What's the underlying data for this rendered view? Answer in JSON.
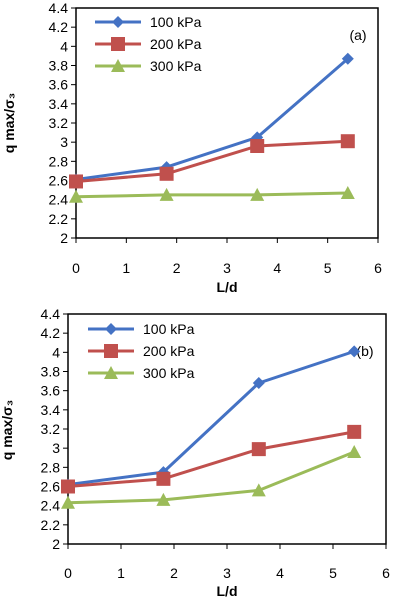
{
  "chart_data": [
    {
      "type": "line",
      "panel_label": "(a)",
      "xlabel": "L/d",
      "ylabel": "q max/σ₃",
      "xlim": [
        0,
        6
      ],
      "ylim": [
        2,
        4.4
      ],
      "xticks": [
        "0",
        "1",
        "2",
        "3",
        "4",
        "5",
        "6"
      ],
      "yticks": [
        "2",
        "2.2",
        "2.4",
        "2.6",
        "2.8",
        "3",
        "3.2",
        "3.4",
        "3.6",
        "3.8",
        "4",
        "4.2",
        "4.4"
      ],
      "grid": false,
      "legend_position": "top-left",
      "series": [
        {
          "name": "100 kPa",
          "color": "#4472C4",
          "marker": "diamond",
          "x": [
            0,
            1.8,
            3.6,
            5.4
          ],
          "y": [
            2.61,
            2.74,
            3.05,
            3.87
          ]
        },
        {
          "name": "200 kPa",
          "color": "#C0504D",
          "marker": "square",
          "x": [
            0,
            1.8,
            3.6,
            5.4
          ],
          "y": [
            2.59,
            2.67,
            2.96,
            3.01
          ]
        },
        {
          "name": "300 kPa",
          "color": "#9BBB59",
          "marker": "triangle",
          "x": [
            0,
            1.8,
            3.6,
            5.4
          ],
          "y": [
            2.43,
            2.45,
            2.45,
            2.47
          ]
        }
      ]
    },
    {
      "type": "line",
      "panel_label": "(b)",
      "xlabel": "L/d",
      "ylabel": "q max/σ₃",
      "xlim": [
        0,
        6
      ],
      "ylim": [
        2,
        4.4
      ],
      "xticks": [
        "0",
        "1",
        "2",
        "3",
        "4",
        "5",
        "6"
      ],
      "yticks": [
        "2",
        "2.2",
        "2.4",
        "2.6",
        "2.8",
        "3",
        "3.2",
        "3.4",
        "3.6",
        "3.8",
        "4",
        "4.2",
        "4.4"
      ],
      "grid": false,
      "legend_position": "top-left",
      "series": [
        {
          "name": "100 kPa",
          "color": "#4472C4",
          "marker": "diamond",
          "x": [
            0,
            1.8,
            3.6,
            5.4
          ],
          "y": [
            2.62,
            2.75,
            3.68,
            4.01
          ]
        },
        {
          "name": "200 kPa",
          "color": "#C0504D",
          "marker": "square",
          "x": [
            0,
            1.8,
            3.6,
            5.4
          ],
          "y": [
            2.6,
            2.68,
            2.99,
            3.17
          ]
        },
        {
          "name": "300 kPa",
          "color": "#9BBB59",
          "marker": "triangle",
          "x": [
            0,
            1.8,
            3.6,
            5.4
          ],
          "y": [
            2.43,
            2.46,
            2.56,
            2.96
          ]
        }
      ]
    }
  ]
}
